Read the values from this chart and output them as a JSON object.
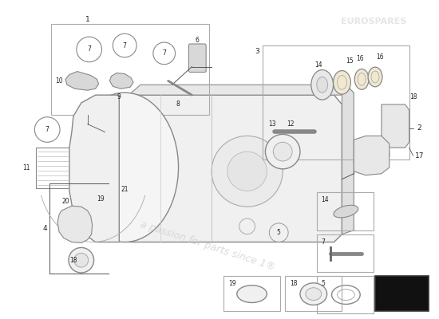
{
  "bg_color": "#ffffff",
  "line_color": "#555555",
  "text_color": "#222222",
  "label_font_size": 6.5,
  "fig_w": 5.5,
  "fig_h": 4.0,
  "dpi": 100
}
